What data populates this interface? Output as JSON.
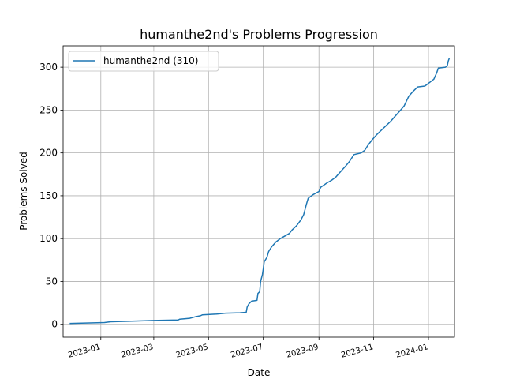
{
  "chart_data": {
    "type": "line",
    "title": "humanthe2nd's Problems Progression",
    "xlabel": "Date",
    "ylabel": "Problems Solved",
    "xlim": [
      "2022-11-20",
      "2024-01-30"
    ],
    "ylim": [
      -15,
      325
    ],
    "x_ticks": [
      "2023-01",
      "2023-03",
      "2023-05",
      "2023-07",
      "2023-09",
      "2023-11",
      "2024-01"
    ],
    "y_ticks": [
      0,
      50,
      100,
      150,
      200,
      250,
      300
    ],
    "grid": true,
    "legend_position": "upper-left",
    "series": [
      {
        "name": "humanthe2nd (310)",
        "color": "#1f77b4",
        "points": [
          [
            "2022-11-28",
            1
          ],
          [
            "2022-12-15",
            1.5
          ],
          [
            "2023-01-05",
            2
          ],
          [
            "2023-01-12",
            3
          ],
          [
            "2023-02-01",
            3.5
          ],
          [
            "2023-03-01",
            4.5
          ],
          [
            "2023-03-28",
            5
          ],
          [
            "2023-03-30",
            6
          ],
          [
            "2023-04-10",
            7
          ],
          [
            "2023-04-17",
            9
          ],
          [
            "2023-04-22",
            10
          ],
          [
            "2023-04-24",
            11
          ],
          [
            "2023-05-10",
            12
          ],
          [
            "2023-05-20",
            13
          ],
          [
            "2023-06-05",
            13.5
          ],
          [
            "2023-06-12",
            14
          ],
          [
            "2023-06-13",
            20
          ],
          [
            "2023-06-15",
            24
          ],
          [
            "2023-06-18",
            27
          ],
          [
            "2023-06-24",
            28
          ],
          [
            "2023-06-25",
            36
          ],
          [
            "2023-06-27",
            38
          ],
          [
            "2023-06-28",
            50
          ],
          [
            "2023-06-30",
            58
          ],
          [
            "2023-07-01",
            65
          ],
          [
            "2023-07-02",
            73
          ],
          [
            "2023-07-05",
            78
          ],
          [
            "2023-07-07",
            85
          ],
          [
            "2023-07-10",
            90
          ],
          [
            "2023-07-15",
            96
          ],
          [
            "2023-07-20",
            100
          ],
          [
            "2023-07-25",
            103
          ],
          [
            "2023-07-30",
            106
          ],
          [
            "2023-08-02",
            110
          ],
          [
            "2023-08-07",
            115
          ],
          [
            "2023-08-12",
            122
          ],
          [
            "2023-08-15",
            128
          ],
          [
            "2023-08-18",
            140
          ],
          [
            "2023-08-20",
            147
          ],
          [
            "2023-08-25",
            151
          ],
          [
            "2023-09-01",
            155
          ],
          [
            "2023-09-03",
            160
          ],
          [
            "2023-09-10",
            165
          ],
          [
            "2023-09-15",
            168
          ],
          [
            "2023-09-20",
            172
          ],
          [
            "2023-09-25",
            178
          ],
          [
            "2023-10-01",
            185
          ],
          [
            "2023-10-05",
            190
          ],
          [
            "2023-10-10",
            198
          ],
          [
            "2023-10-18",
            200
          ],
          [
            "2023-10-22",
            203
          ],
          [
            "2023-10-25",
            208
          ],
          [
            "2023-10-30",
            215
          ],
          [
            "2023-11-05",
            222
          ],
          [
            "2023-11-10",
            227
          ],
          [
            "2023-11-15",
            232
          ],
          [
            "2023-11-20",
            237
          ],
          [
            "2023-11-25",
            243
          ],
          [
            "2023-12-01",
            250
          ],
          [
            "2023-12-05",
            255
          ],
          [
            "2023-12-10",
            266
          ],
          [
            "2023-12-15",
            272
          ],
          [
            "2023-12-20",
            277
          ],
          [
            "2023-12-28",
            278
          ],
          [
            "2024-01-02",
            282
          ],
          [
            "2024-01-07",
            286
          ],
          [
            "2024-01-10",
            293
          ],
          [
            "2024-01-12",
            299
          ],
          [
            "2024-01-20",
            300
          ],
          [
            "2024-01-22",
            302
          ],
          [
            "2024-01-23",
            307
          ],
          [
            "2024-01-24",
            310
          ]
        ]
      }
    ]
  }
}
